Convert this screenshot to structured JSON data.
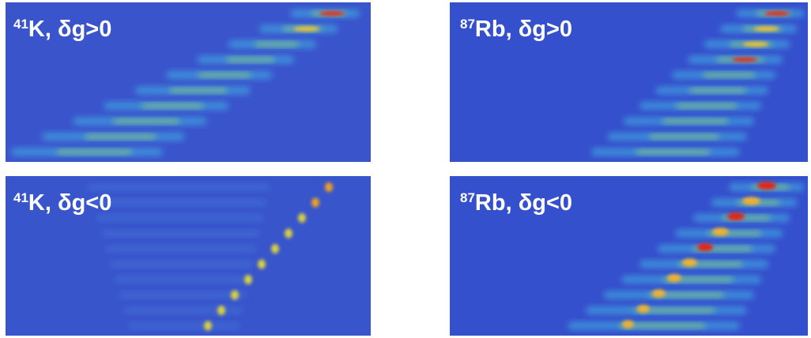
{
  "panels": [
    {
      "mass": "41",
      "label": "K, δg>0"
    },
    {
      "mass": "87",
      "label": "Rb, δg>0"
    },
    {
      "mass": "41",
      "label": "K, δg<0"
    },
    {
      "mass": "87",
      "label": "Rb, δg<0"
    }
  ]
}
